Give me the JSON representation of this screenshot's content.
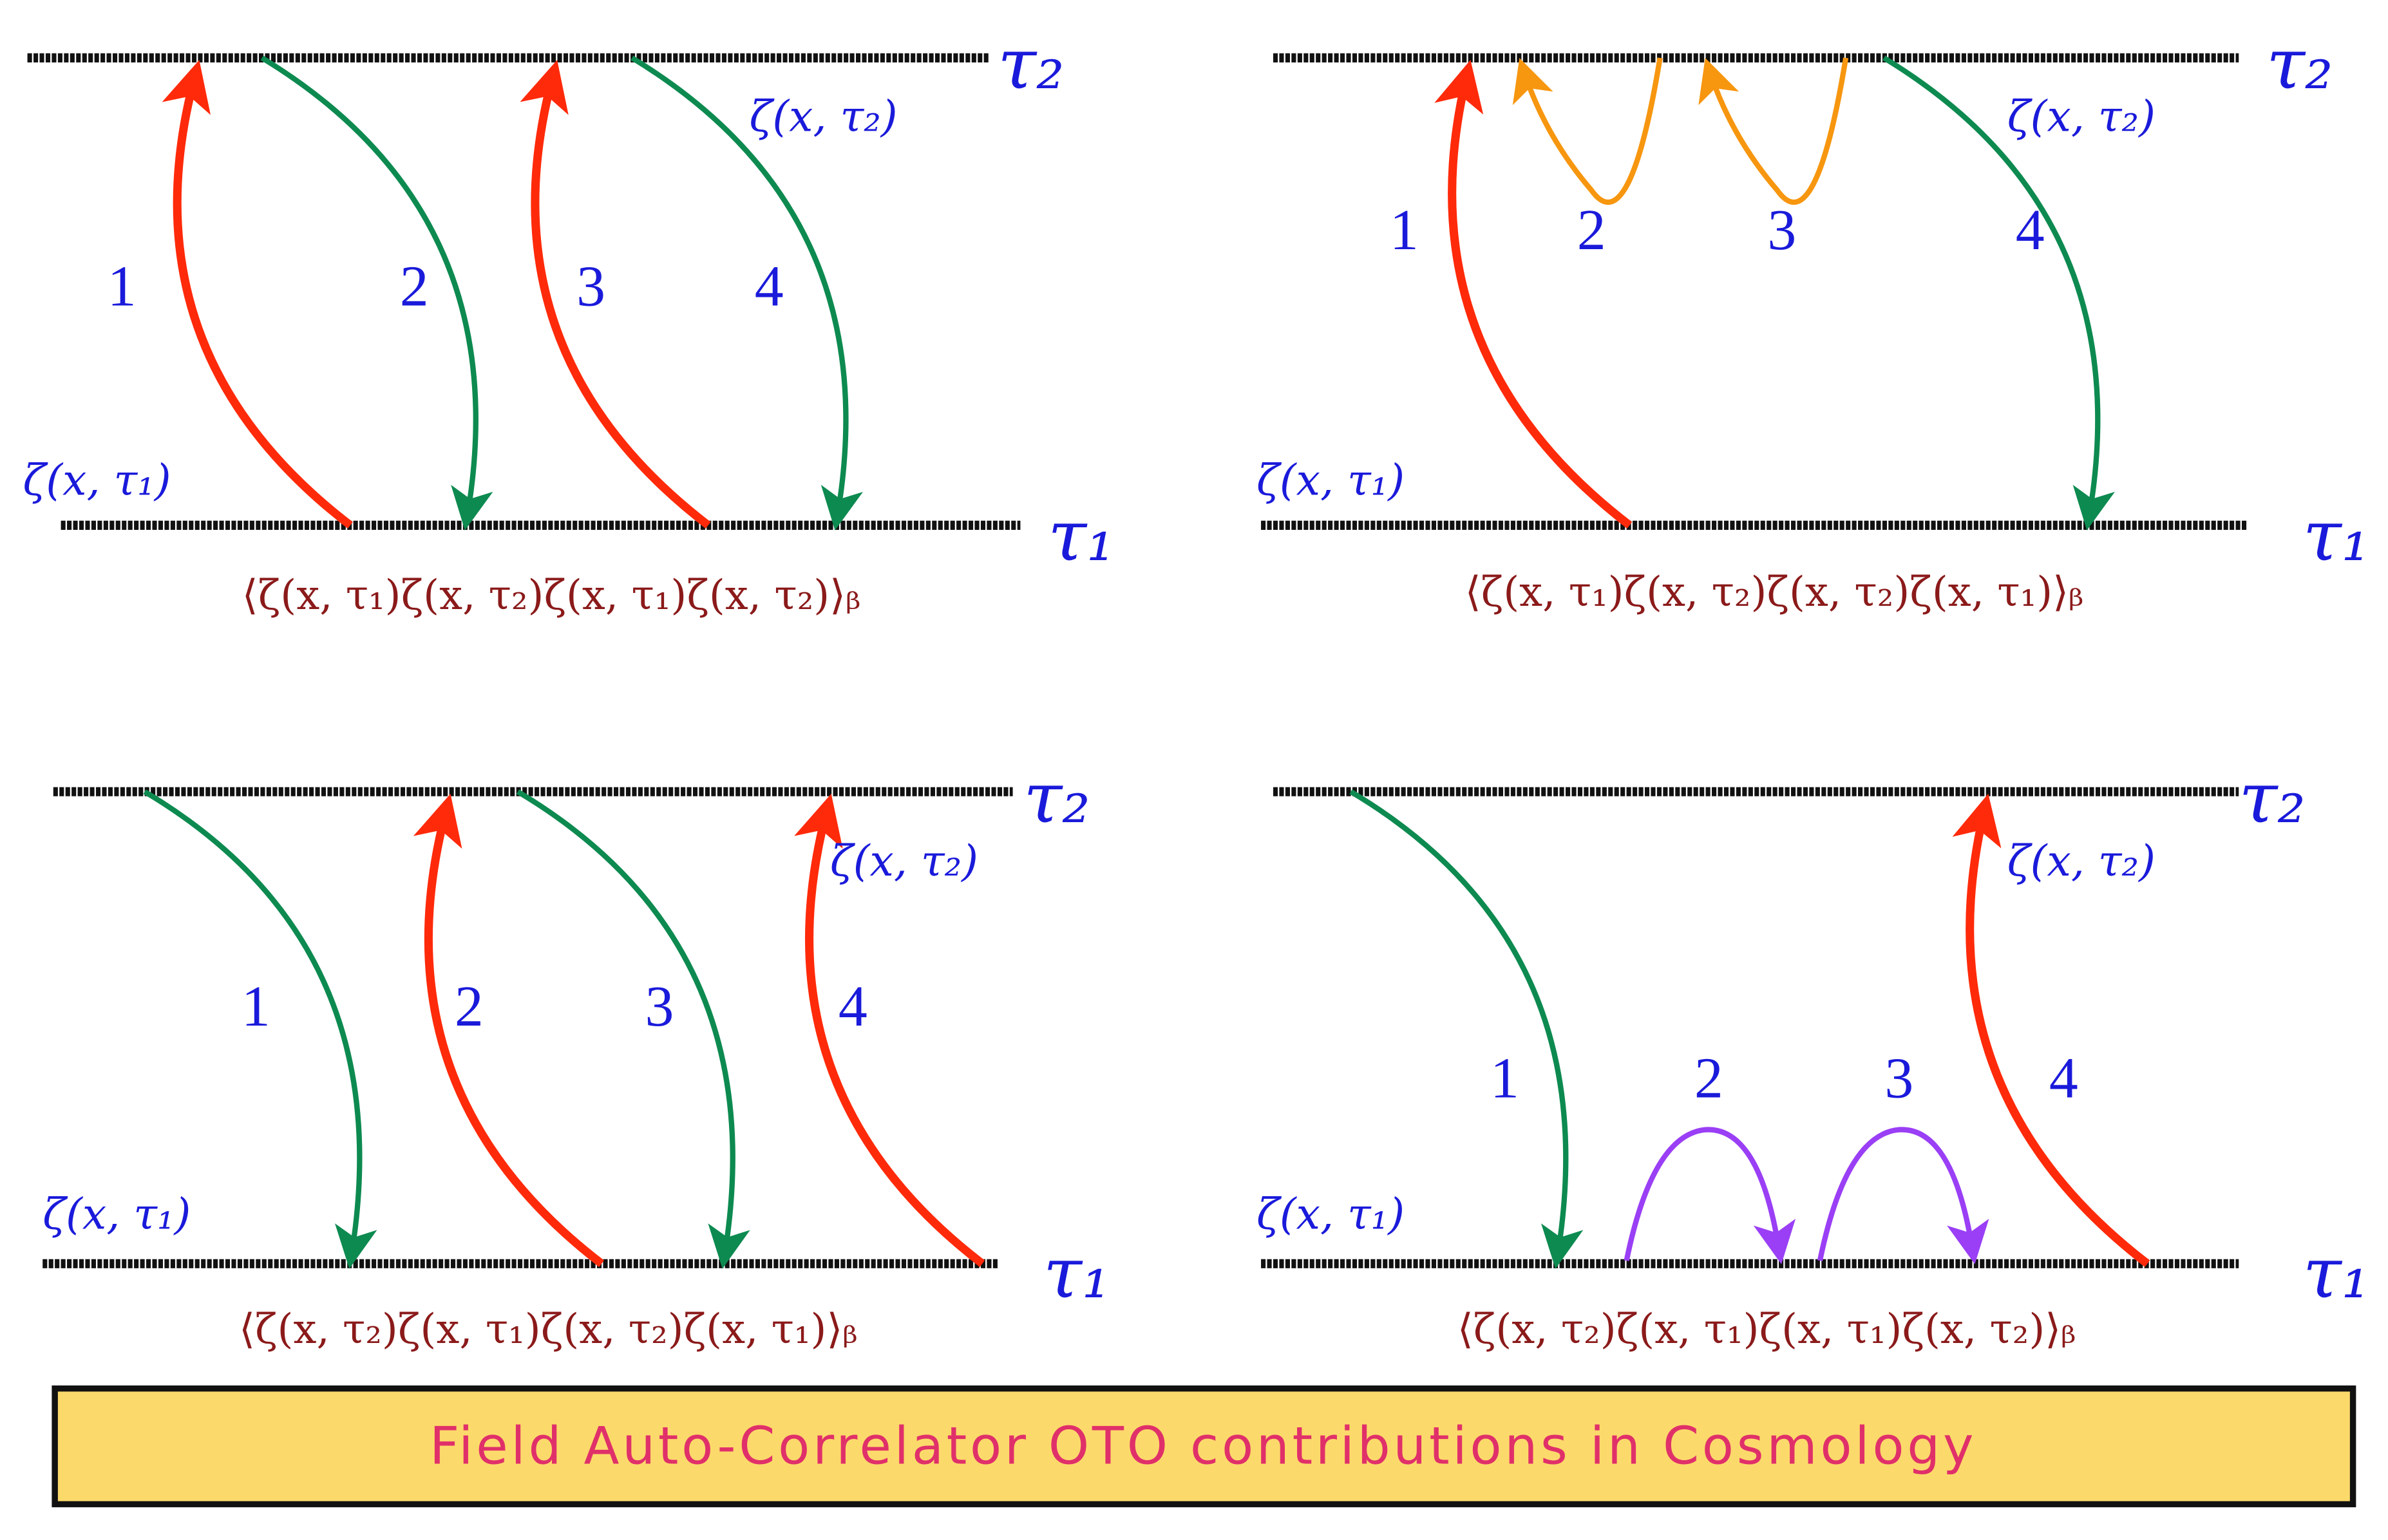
{
  "panels": [
    {
      "tau2": "τ₂",
      "tau1": "τ₁",
      "zeta_top": "ζ(x, τ₂)",
      "zeta_bottom": "ζ(x, τ₁)",
      "steps": [
        "1",
        "2",
        "3",
        "4"
      ],
      "correlator": "⟨ζ(x, τ₁)ζ(x, τ₂)ζ(x, τ₁)ζ(x, τ₂)⟩ᵦ"
    },
    {
      "tau2": "τ₂",
      "tau1": "τ₁",
      "zeta_top": "ζ(x, τ₂)",
      "zeta_bottom": "ζ(x, τ₁)",
      "steps": [
        "1",
        "2",
        "3",
        "4"
      ],
      "correlator": "⟨ζ(x, τ₁)ζ(x, τ₂)ζ(x, τ₂)ζ(x, τ₁)⟩ᵦ"
    },
    {
      "tau2": "τ₂",
      "tau1": "τ₁",
      "zeta_top": "ζ(x, τ₂)",
      "zeta_bottom": "ζ(x, τ₁)",
      "steps": [
        "1",
        "2",
        "3",
        "4"
      ],
      "correlator": "⟨ζ(x, τ₂)ζ(x, τ₁)ζ(x, τ₂)ζ(x, τ₁)⟩ᵦ"
    },
    {
      "tau2": "τ₂",
      "tau1": "τ₁",
      "zeta_top": "ζ(x, τ₂)",
      "zeta_bottom": "ζ(x, τ₁)",
      "steps": [
        "1",
        "2",
        "3",
        "4"
      ],
      "correlator": "⟨ζ(x, τ₂)ζ(x, τ₁)ζ(x, τ₁)ζ(x, τ₂)⟩ᵦ"
    }
  ],
  "footer": {
    "title": "Field Auto-Correlator OTO contributions in Cosmology"
  }
}
